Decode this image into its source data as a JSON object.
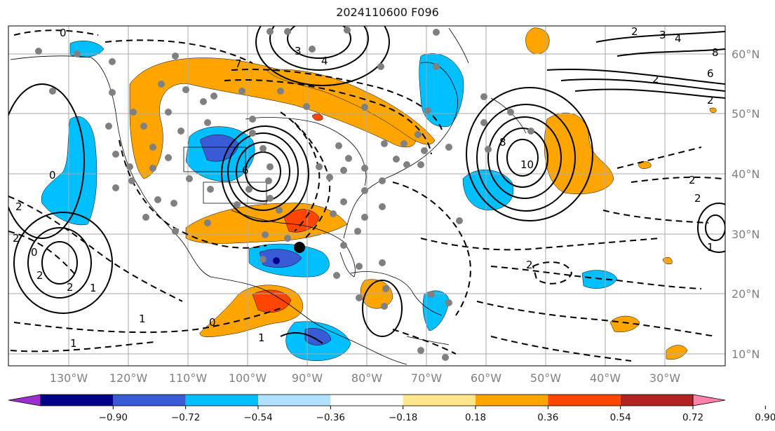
{
  "title": "2024110600 F096",
  "lon_labels": [
    "130°W",
    "120°W",
    "110°W",
    "100°W",
    "90°W",
    "80°W",
    "70°W",
    "60°W",
    "50°W",
    "40°W",
    "30°W"
  ],
  "lat_labels": [
    "60°N",
    "50°N",
    "40°N",
    "30°N",
    "20°N",
    "10°N"
  ],
  "colorbar": {
    "ticks": [
      "−0.90",
      "−0.72",
      "−0.54",
      "−0.36",
      "−0.18",
      "0.18",
      "0.36",
      "0.54",
      "0.72",
      "0.90"
    ],
    "colors": [
      "#9b30d0",
      "#00008b",
      "#3a5bd6",
      "#00bfff",
      "#b0e2ff",
      "#ffffff",
      "#ffe68a",
      "#ffa500",
      "#ff4500",
      "#b22222",
      "#ff82ab"
    ]
  },
  "contour_labels": [
    "0",
    "3",
    "4",
    "7",
    "2",
    "3",
    "4",
    "8",
    "6",
    "2",
    "2",
    "10",
    "8",
    "6",
    "2",
    "2",
    "2",
    "0",
    "2",
    "1",
    "1",
    "2",
    "2",
    "0",
    "1",
    "1",
    "2",
    "1",
    "0"
  ],
  "station_marker": "large-black-dot"
}
